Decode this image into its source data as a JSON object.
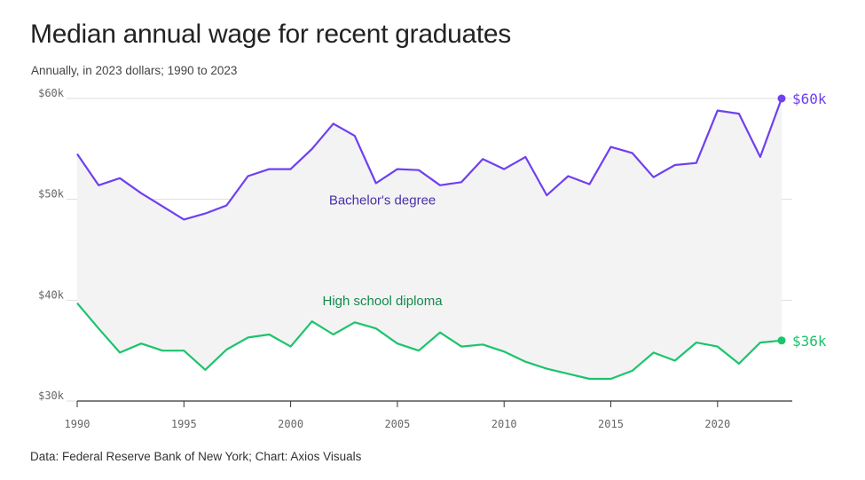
{
  "title": "Median annual wage for recent graduates",
  "subtitle": "Annually, in 2023 dollars; 1990 to 2023",
  "source": "Data: Federal Reserve Bank of New York; Chart: Axios Visuals",
  "colors": {
    "bachelors": "#6f3ff0",
    "high_school": "#1cc46b",
    "fill": "#f3f3f4",
    "grid": "#dddddd",
    "axis": "#333333"
  },
  "chart_data": {
    "type": "line",
    "x": [
      1990,
      1991,
      1992,
      1993,
      1994,
      1995,
      1996,
      1997,
      1998,
      1999,
      2000,
      2001,
      2002,
      2003,
      2004,
      2005,
      2006,
      2007,
      2008,
      2009,
      2010,
      2011,
      2012,
      2013,
      2014,
      2015,
      2016,
      2017,
      2018,
      2019,
      2020,
      2021,
      2022,
      2023
    ],
    "series": [
      {
        "name": "Bachelor's degree",
        "values": [
          54500,
          51400,
          52100,
          50600,
          49300,
          48000,
          48600,
          49400,
          52300,
          53000,
          53000,
          55000,
          57500,
          56300,
          51600,
          53000,
          52900,
          51400,
          51700,
          54000,
          53000,
          54200,
          50400,
          52300,
          51500,
          55200,
          54600,
          52200,
          53400,
          53600,
          58800,
          58500,
          54200,
          60000
        ],
        "end_label": "$60k"
      },
      {
        "name": "High school diploma",
        "values": [
          39700,
          37200,
          34800,
          35700,
          35000,
          35000,
          33100,
          35100,
          36300,
          36600,
          35400,
          37900,
          36600,
          37800,
          37200,
          35700,
          35000,
          36800,
          35400,
          35600,
          34900,
          33900,
          33200,
          32700,
          32200,
          32200,
          33000,
          34800,
          34000,
          35800,
          35400,
          33700,
          35800,
          36000
        ],
        "end_label": "$36k"
      }
    ],
    "x_ticks": [
      1990,
      1995,
      2000,
      2005,
      2010,
      2015,
      2020
    ],
    "y_ticks": [
      30000,
      40000,
      50000,
      60000
    ],
    "y_tick_labels": [
      "$30k",
      "$40k",
      "$50k",
      "$60k"
    ],
    "xlim": [
      1990,
      2023
    ],
    "ylim": [
      30000,
      60000
    ],
    "grid": true
  }
}
